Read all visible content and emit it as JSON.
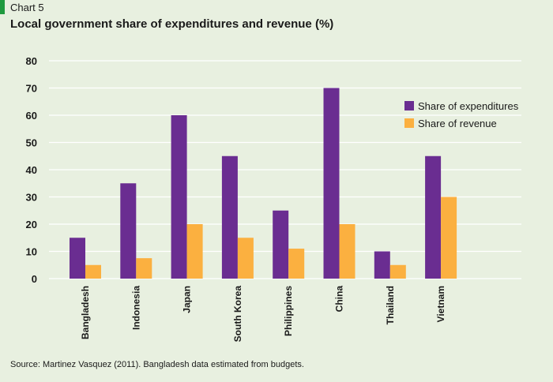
{
  "header": {
    "chart_number": "Chart 5",
    "title": "Local government share of expenditures and revenue (%)"
  },
  "footer": {
    "source": "Source:  Martinez Vasquez (2011).  Bangladesh data estimated from budgets."
  },
  "colors": {
    "background": "#e8f0e0",
    "accent": "#1f9a3f",
    "expenditures": "#6a2d91",
    "revenue": "#fbb040",
    "grid": "#ffffff"
  },
  "chart_data": {
    "type": "bar",
    "title": "Local government share of expenditures and revenue (%)",
    "categories": [
      "Bangladesh",
      "Indonesia",
      "Japan",
      "South Korea",
      "Philippines",
      "China",
      "Thailand",
      "Vietnam"
    ],
    "series": [
      {
        "name": "Share of expenditures",
        "values": [
          15,
          35,
          60,
          45,
          25,
          70,
          10,
          45
        ]
      },
      {
        "name": "Share of revenue",
        "values": [
          5,
          7.5,
          20,
          15,
          11,
          20,
          5,
          30
        ]
      }
    ],
    "ylim": [
      0,
      80
    ],
    "yticks": [
      0,
      10,
      20,
      30,
      40,
      50,
      60,
      70,
      80
    ],
    "grid": true,
    "legend_position": "top-right"
  }
}
